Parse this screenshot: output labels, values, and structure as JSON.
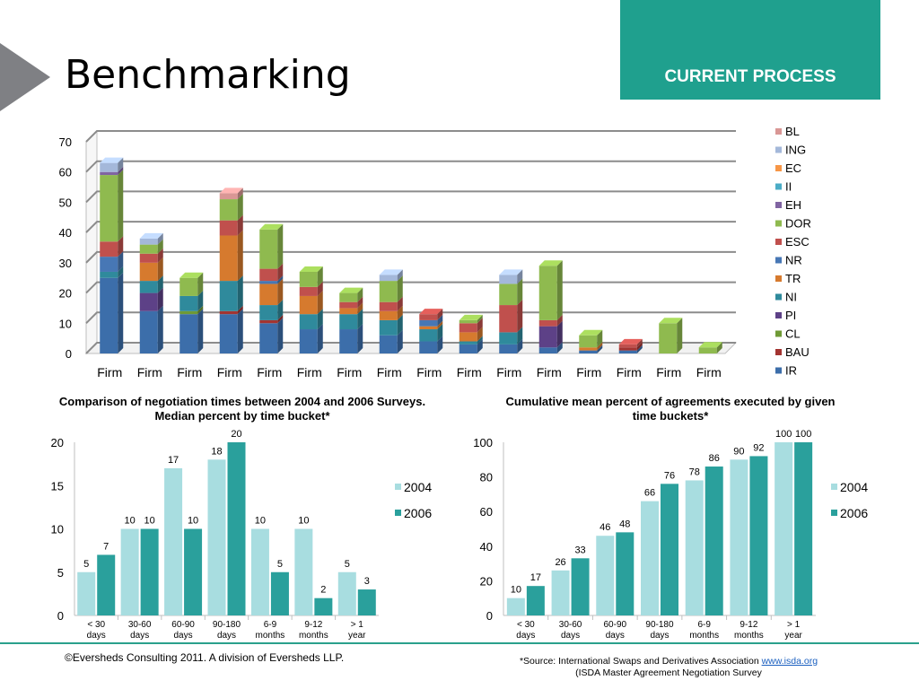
{
  "header": {
    "title": "Benchmarking",
    "banner": "CURRENT PROCESS"
  },
  "colors": {
    "accent": "#1fa08e",
    "arrow": "#7f8084"
  },
  "chart_data": [
    {
      "type": "bar",
      "stacked": true,
      "categories": [
        "Firm",
        "Firm",
        "Firm",
        "Firm",
        "Firm",
        "Firm",
        "Firm",
        "Firm",
        "Firm",
        "Firm",
        "Firm",
        "Firm",
        "Firm",
        "Firm",
        "Firm",
        "Firm"
      ],
      "ylim": [
        0,
        70
      ],
      "yticks": [
        0,
        10,
        20,
        30,
        40,
        50,
        60,
        70
      ],
      "grid": true,
      "legend": "right",
      "series": [
        {
          "name": "IR",
          "color": "#3c6eaa",
          "values": [
            25,
            14,
            13,
            13,
            10,
            8,
            8,
            6,
            4,
            3,
            3,
            2,
            1,
            1,
            0,
            0
          ]
        },
        {
          "name": "BAU",
          "color": "#a33431",
          "values": [
            0,
            0,
            0,
            1,
            1,
            0,
            0,
            0,
            0,
            0,
            0,
            0,
            0,
            1,
            0,
            0
          ]
        },
        {
          "name": "CL",
          "color": "#6f9a35",
          "values": [
            0,
            0,
            1,
            0,
            0,
            0,
            0,
            0,
            0,
            0,
            0,
            0,
            0,
            0,
            0,
            0
          ]
        },
        {
          "name": "PI",
          "color": "#5d4187",
          "values": [
            0,
            6,
            0,
            0,
            0,
            0,
            0,
            0,
            0,
            0,
            0,
            7,
            0,
            0,
            0,
            0
          ]
        },
        {
          "name": "NI",
          "color": "#2f8a9c",
          "values": [
            2,
            4,
            5,
            10,
            5,
            5,
            5,
            5,
            4,
            1,
            4,
            0,
            0,
            0,
            0,
            0
          ]
        },
        {
          "name": "TR",
          "color": "#d67a2e",
          "values": [
            0,
            6,
            0,
            15,
            7,
            6,
            2,
            3,
            1,
            3,
            0,
            0,
            1,
            0,
            0,
            0
          ]
        },
        {
          "name": "NR",
          "color": "#4777b5",
          "values": [
            5,
            0,
            0,
            0,
            1,
            0,
            0,
            0,
            2,
            0,
            0,
            0,
            0,
            0,
            0,
            0
          ]
        },
        {
          "name": "ESC",
          "color": "#c0504d",
          "values": [
            5,
            3,
            0,
            5,
            4,
            3,
            2,
            3,
            2,
            3,
            9,
            2,
            0,
            1,
            0,
            0
          ]
        },
        {
          "name": "DOR",
          "color": "#8fba4f",
          "values": [
            22,
            3,
            6,
            7,
            13,
            5,
            3,
            7,
            0,
            1,
            7,
            18,
            4,
            0,
            10,
            2
          ]
        },
        {
          "name": "EH",
          "color": "#8064a2",
          "values": [
            1,
            0,
            0,
            0,
            0,
            0,
            0,
            0,
            0,
            0,
            0,
            0,
            0,
            0,
            0,
            0
          ]
        },
        {
          "name": "II",
          "color": "#4bacc6",
          "values": [
            0,
            0,
            0,
            0,
            0,
            0,
            0,
            0,
            0,
            0,
            0,
            0,
            0,
            0,
            0,
            0
          ]
        },
        {
          "name": "EC",
          "color": "#f79646",
          "values": [
            0,
            0,
            0,
            0,
            0,
            0,
            0,
            0,
            0,
            0,
            0,
            0,
            0,
            0,
            0,
            0
          ]
        },
        {
          "name": "ING",
          "color": "#a4b8da",
          "values": [
            3,
            2,
            0,
            0,
            0,
            0,
            0,
            2,
            0,
            0,
            3,
            0,
            0,
            0,
            0,
            0
          ]
        },
        {
          "name": "BL",
          "color": "#d99795",
          "values": [
            0,
            0,
            0,
            2,
            0,
            0,
            0,
            0,
            0,
            0,
            0,
            0,
            0,
            0,
            0,
            0
          ]
        }
      ]
    },
    {
      "type": "bar",
      "title": "Comparison of negotiation times between 2004 and 2006 Surveys. Median percent by time bucket*",
      "categories": [
        "< 30 days",
        "30-60 days",
        "60-90 days",
        "90-180 days",
        "6-9 months",
        "9-12 months",
        "> 1 year"
      ],
      "ylim": [
        0,
        20
      ],
      "yticks": [
        0,
        5,
        10,
        15,
        20
      ],
      "legend": "right",
      "series": [
        {
          "name": "2004",
          "color": "#a8dde0",
          "values": [
            5,
            10,
            17,
            18,
            10,
            10,
            5
          ]
        },
        {
          "name": "2006",
          "color": "#2aa09c",
          "values": [
            7,
            10,
            10,
            20,
            5,
            2,
            3
          ]
        }
      ]
    },
    {
      "type": "bar",
      "title": "Cumulative mean percent of agreements executed by given time buckets*",
      "categories": [
        "< 30 days",
        "30-60 days",
        "60-90 days",
        "90-180 days",
        "6-9 months",
        "9-12 months",
        "> 1 year"
      ],
      "ylim": [
        0,
        100
      ],
      "yticks": [
        0,
        20,
        40,
        60,
        80,
        100
      ],
      "legend": "right",
      "series": [
        {
          "name": "2004",
          "color": "#a8dde0",
          "values": [
            10,
            26,
            46,
            66,
            78,
            90,
            100
          ]
        },
        {
          "name": "2006",
          "color": "#2aa09c",
          "values": [
            17,
            33,
            48,
            76,
            86,
            92,
            100
          ]
        }
      ]
    }
  ],
  "footer": {
    "copyright": "©Eversheds Consulting 2011. A division of Eversheds LLP.",
    "source_prefix": "*Source: International Swaps and Derivatives Association ",
    "source_link": "www.isda.org",
    "source_line2": "(ISDA Master Agreement Negotiation Survey"
  }
}
